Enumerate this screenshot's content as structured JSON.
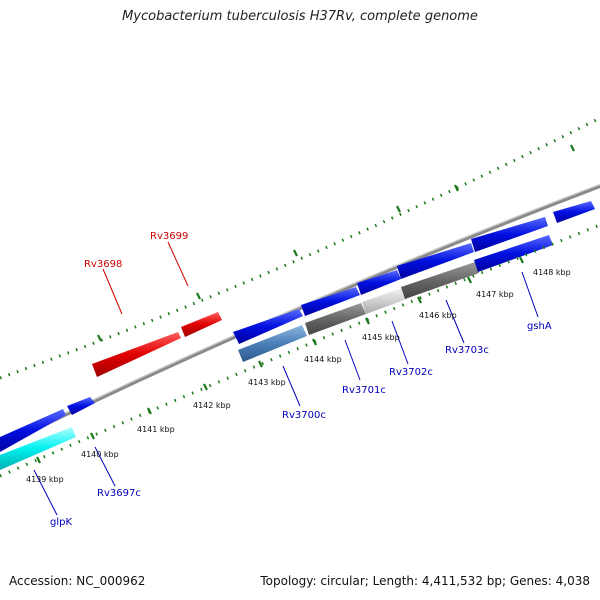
{
  "title": "Mycobacterium tuberculosis H37Rv, complete genome",
  "footer": {
    "accession": "Accession: NC_000962",
    "summary": "Topology: circular; Length: 4,411,532 bp; Genes: 4,038"
  },
  "colors": {
    "backbone": "#888888",
    "tick": "#1a7a1a",
    "forward_gene": "#0000dd",
    "label_forward": "#cc0000",
    "label_reverse": "#0000bb",
    "red_gene": "#e01010",
    "cyan_gene": "#00e5e5"
  },
  "kbp_labels": [
    "4139 kbp",
    "4140 kbp",
    "4141 kbp",
    "4142 kbp",
    "4143 kbp",
    "4144 kbp",
    "4145 kbp",
    "4146 kbp",
    "4147 kbp",
    "4148 kbp"
  ],
  "gene_labels": {
    "rv3698": "Rv3698",
    "rv3699": "Rv3699",
    "glpk": "glpK",
    "rv3697c": "Rv3697c",
    "rv3700c": "Rv3700c",
    "rv3701c": "Rv3701c",
    "rv3702c": "Rv3702c",
    "rv3703c": "Rv3703c",
    "gsha": "gshA"
  }
}
